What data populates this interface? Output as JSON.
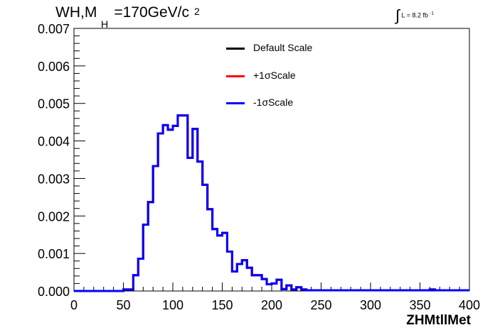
{
  "header": {
    "title_text": "WH,M",
    "title_sub": "H",
    "title_rest": "=170GeV/c",
    "title_sup": "2",
    "lumi_label": "L = 8.2 fb",
    "lumi_sup": "-1"
  },
  "chart_data": {
    "type": "line",
    "step": true,
    "title": "WH,MH=170GeV/c2",
    "xlabel": "ZHMtllMet",
    "ylabel": "",
    "xlim": [
      0,
      400
    ],
    "ylim": [
      0,
      0.007
    ],
    "x_ticks": [
      "0",
      "50",
      "100",
      "150",
      "200",
      "250",
      "300",
      "350",
      "400"
    ],
    "y_ticks": [
      "0.000",
      "0.001",
      "0.002",
      "0.003",
      "0.004",
      "0.005",
      "0.006",
      "0.007"
    ],
    "bin_edges": [
      0,
      10,
      20,
      30,
      40,
      50,
      60,
      65,
      70,
      75,
      80,
      85,
      90,
      95,
      100,
      105,
      110,
      115,
      120,
      125,
      130,
      135,
      140,
      145,
      150,
      155,
      160,
      165,
      170,
      175,
      180,
      185,
      190,
      195,
      200,
      205,
      210,
      215,
      220,
      225,
      230,
      235,
      240,
      245,
      250,
      255,
      260,
      265,
      270,
      275,
      280,
      285,
      290,
      295,
      300,
      305,
      310,
      315,
      320,
      325,
      330,
      335,
      340,
      345,
      350,
      355,
      360,
      365,
      370,
      375,
      380,
      385,
      390,
      395,
      400
    ],
    "series": [
      {
        "name": "Default Scale",
        "color": "#000000",
        "values": [
          0,
          0,
          0,
          0,
          0,
          4e-05,
          0.00042,
          0.00086,
          0.00177,
          0.00237,
          0.00333,
          0.0042,
          0.00442,
          0.0043,
          0.0044,
          0.00468,
          0.00468,
          0.00355,
          0.00432,
          0.00345,
          0.00283,
          0.00218,
          0.00165,
          0.00148,
          0.00155,
          0.00105,
          0.00052,
          0.00072,
          0.00082,
          0.00062,
          0.00042,
          0.00042,
          0.00032,
          0.00018,
          0.0002,
          0.0003,
          5e-05,
          0.00015,
          4e-05,
          0.0001,
          4e-05,
          2e-05,
          2e-05,
          2e-05,
          2e-05,
          2e-05,
          2e-05,
          2e-05,
          2e-05,
          2e-05,
          2e-05,
          2e-05,
          2e-05,
          2e-05,
          2e-05,
          2e-05,
          2e-05,
          2e-05,
          2e-05,
          2e-05,
          2e-05,
          2e-05,
          2e-05,
          2e-05,
          2e-05,
          2e-05,
          4e-05,
          2e-05,
          2e-05,
          2e-05,
          2e-05,
          2e-05,
          2e-05,
          2e-05
        ]
      },
      {
        "name": "+1σScale",
        "color": "#ff0000",
        "values": [
          0,
          0,
          0,
          0,
          0,
          4e-05,
          0.00042,
          0.00086,
          0.00177,
          0.00237,
          0.00333,
          0.0042,
          0.00442,
          0.0043,
          0.0044,
          0.00468,
          0.00468,
          0.00355,
          0.00432,
          0.00345,
          0.00283,
          0.00218,
          0.00165,
          0.00148,
          0.00155,
          0.00105,
          0.00052,
          0.00072,
          0.00082,
          0.00062,
          0.00042,
          0.00042,
          0.00032,
          0.00018,
          0.0002,
          0.0003,
          5e-05,
          0.00015,
          4e-05,
          0.0001,
          4e-05,
          2e-05,
          2e-05,
          2e-05,
          2e-05,
          2e-05,
          2e-05,
          2e-05,
          2e-05,
          2e-05,
          2e-05,
          2e-05,
          2e-05,
          2e-05,
          2e-05,
          2e-05,
          2e-05,
          2e-05,
          2e-05,
          2e-05,
          2e-05,
          2e-05,
          2e-05,
          2e-05,
          2e-05,
          2e-05,
          4e-05,
          2e-05,
          2e-05,
          2e-05,
          2e-05,
          2e-05,
          2e-05,
          2e-05
        ]
      },
      {
        "name": "-1σScale",
        "color": "#0000ff",
        "values": [
          0,
          0,
          0,
          0,
          0,
          4e-05,
          0.00042,
          0.00086,
          0.00177,
          0.00237,
          0.00333,
          0.0042,
          0.00442,
          0.0043,
          0.0044,
          0.00468,
          0.00468,
          0.00355,
          0.00432,
          0.00345,
          0.00283,
          0.00218,
          0.00165,
          0.00148,
          0.00155,
          0.00105,
          0.00052,
          0.00072,
          0.00082,
          0.00062,
          0.00042,
          0.00042,
          0.00032,
          0.00018,
          0.0002,
          0.0003,
          5e-05,
          0.00015,
          4e-05,
          0.0001,
          4e-05,
          2e-05,
          2e-05,
          2e-05,
          2e-05,
          2e-05,
          2e-05,
          2e-05,
          2e-05,
          2e-05,
          2e-05,
          2e-05,
          2e-05,
          2e-05,
          2e-05,
          2e-05,
          2e-05,
          2e-05,
          2e-05,
          2e-05,
          2e-05,
          2e-05,
          2e-05,
          2e-05,
          2e-05,
          2e-05,
          4e-05,
          2e-05,
          2e-05,
          2e-05,
          2e-05,
          2e-05,
          2e-05,
          2e-05
        ]
      }
    ],
    "legend_position": "top-center",
    "grid": false
  }
}
